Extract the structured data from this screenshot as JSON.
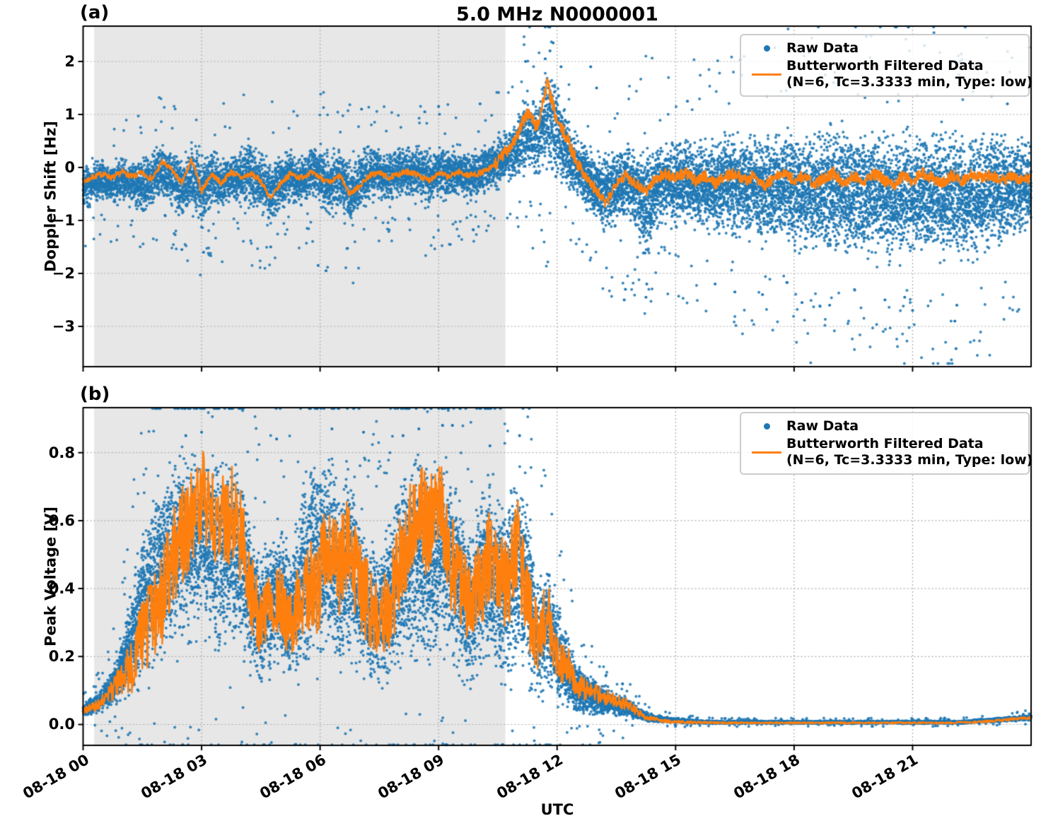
{
  "chart_data": {
    "type": "scatter",
    "title": "5.0 MHz N0000001",
    "xlabel": "UTC",
    "x_tick_labels": [
      "08-18 00",
      "08-18 03",
      "08-18 06",
      "08-18 09",
      "08-18 12",
      "08-18 15",
      "08-18 18",
      "08-18 21"
    ],
    "x_tick_hours": [
      0,
      3,
      6,
      9,
      12,
      15,
      18,
      21
    ],
    "x_range_hours": [
      0,
      24
    ],
    "shaded_region_hours": [
      0.28,
      10.69
    ],
    "shade_color": "#e7e7e7",
    "grid": true,
    "legend_position": "upper right",
    "series_colors": {
      "raw": "#1f77b4",
      "filtered": "#ff7f0e"
    },
    "legend": {
      "raw_label": "Raw Data",
      "filtered_label": "Butterworth Filtered Data",
      "filtered_sublabel": "(N=6, Tc=3.3333 min, Type: low)"
    },
    "t_step_hours": 0.25,
    "panels": [
      {
        "label": "(a)",
        "ylabel": "Doppler Shift [Hz]",
        "y_ticks": [
          2,
          1,
          0,
          -1,
          -2,
          -3
        ],
        "y_tick_labels": [
          "2",
          "1",
          "0",
          "−1",
          "−2",
          "−3"
        ],
        "ylim": [
          -3.7,
          2.65
        ],
        "filtered": [
          -0.28,
          -0.18,
          -0.12,
          -0.2,
          -0.08,
          -0.18,
          -0.1,
          -0.22,
          0.1,
          -0.05,
          -0.3,
          0.15,
          -0.45,
          -0.12,
          -0.3,
          -0.08,
          -0.2,
          -0.12,
          -0.25,
          -0.6,
          -0.3,
          -0.12,
          -0.2,
          -0.1,
          -0.18,
          -0.3,
          -0.15,
          -0.5,
          -0.35,
          -0.15,
          -0.1,
          -0.2,
          -0.12,
          -0.08,
          -0.15,
          -0.25,
          -0.1,
          -0.18,
          -0.08,
          -0.15,
          -0.12,
          -0.05,
          0.1,
          0.35,
          0.6,
          1.05,
          0.75,
          1.6,
          0.85,
          0.55,
          0.1,
          -0.2,
          -0.45,
          -0.7,
          -0.25,
          -0.15,
          -0.3,
          -0.45,
          -0.2,
          -0.12,
          -0.2,
          -0.1,
          -0.25,
          -0.15,
          -0.3,
          -0.18,
          -0.1,
          -0.25,
          -0.15,
          -0.35,
          -0.2,
          -0.1,
          -0.25,
          -0.15,
          -0.35,
          -0.2,
          -0.1,
          -0.3,
          -0.15,
          -0.25,
          -0.12,
          -0.22,
          -0.35,
          -0.15,
          -0.25,
          -0.1,
          -0.2,
          -0.3,
          -0.15,
          -0.25,
          -0.12,
          -0.2,
          -0.15,
          -0.25,
          -0.18,
          -0.22,
          -0.2
        ],
        "band_lo": [
          -0.85,
          -0.8,
          -0.75,
          -0.8,
          -0.7,
          -0.85,
          -1.0,
          -0.9,
          -0.7,
          -0.85,
          -1.1,
          -0.95,
          -1.3,
          -0.9,
          -1.0,
          -0.75,
          -0.85,
          -0.95,
          -1.0,
          -1.25,
          -0.95,
          -0.75,
          -0.85,
          -0.7,
          -0.8,
          -1.15,
          -0.9,
          -1.35,
          -1.0,
          -0.8,
          -0.7,
          -0.8,
          -0.75,
          -0.65,
          -0.75,
          -0.9,
          -0.7,
          -0.8,
          -0.65,
          -0.75,
          -0.7,
          -0.6,
          -0.5,
          -0.4,
          -0.35,
          -0.3,
          -0.35,
          -0.3,
          -0.4,
          -0.55,
          -0.7,
          -0.9,
          -1.1,
          -1.4,
          -1.2,
          -1.1,
          -1.3,
          -2.3,
          -1.3,
          -1.2,
          -1.3,
          -1.25,
          -1.4,
          -1.35,
          -1.5,
          -1.45,
          -1.55,
          -1.6,
          -1.65,
          -1.7,
          -1.75,
          -1.7,
          -1.8,
          -1.85,
          -1.9,
          -1.85,
          -1.95,
          -2.0,
          -1.95,
          -2.0,
          -1.95,
          -2.0,
          -2.05,
          -1.95,
          -2.0,
          -1.95,
          -2.0,
          -2.05,
          -2.1,
          -2.0,
          -1.95,
          -1.9,
          -1.8,
          -1.7,
          -1.6,
          -1.55,
          -1.5
        ],
        "band_hi": [
          0.15,
          0.2,
          0.25,
          0.2,
          0.3,
          0.25,
          0.3,
          0.45,
          0.55,
          0.4,
          0.35,
          0.6,
          0.45,
          0.5,
          0.35,
          0.4,
          0.45,
          0.7,
          0.4,
          0.3,
          0.35,
          0.4,
          0.3,
          0.45,
          0.55,
          0.4,
          0.5,
          0.35,
          0.45,
          0.6,
          0.5,
          0.4,
          0.55,
          0.45,
          0.6,
          0.4,
          0.55,
          0.45,
          0.5,
          0.4,
          0.45,
          0.55,
          0.7,
          0.9,
          1.2,
          1.7,
          1.4,
          2.3,
          1.8,
          1.0,
          0.7,
          0.5,
          0.4,
          0.45,
          0.5,
          0.6,
          0.55,
          0.8,
          0.6,
          0.7,
          0.65,
          0.75,
          0.7,
          0.8,
          0.75,
          0.85,
          0.8,
          0.9,
          0.85,
          0.9,
          0.85,
          0.95,
          0.9,
          0.95,
          0.9,
          1.0,
          0.95,
          1.1,
          0.95,
          0.9,
          1.0,
          0.95,
          0.9,
          0.95,
          1.0,
          0.9,
          0.95,
          1.0,
          1.05,
          0.95,
          0.9,
          0.85,
          0.9,
          0.85,
          0.8,
          0.85,
          0.8
        ],
        "outliers": [
          [
            11.9,
            2.35
          ],
          [
            11.82,
            2.2
          ],
          [
            11.7,
            2.05
          ],
          [
            13.7,
            -2.5
          ],
          [
            13.73,
            -2.3
          ],
          [
            14.25,
            -2.45
          ],
          [
            14.27,
            -2.2
          ],
          [
            22.1,
            -3.42
          ],
          [
            22.07,
            -2.9
          ],
          [
            22.12,
            -2.6
          ],
          [
            19.3,
            2.3
          ],
          [
            19.28,
            1.9
          ],
          [
            22.2,
            2.0
          ],
          [
            21.0,
            -2.7
          ],
          [
            18.2,
            -2.55
          ],
          [
            16.5,
            -2.35
          ],
          [
            20.3,
            -2.5
          ],
          [
            17.2,
            -2.4
          ],
          [
            9.0,
            1.15
          ],
          [
            7.05,
            1.1
          ],
          [
            8.65,
            1.05
          ],
          [
            10.05,
            1.2
          ],
          [
            5.95,
            -1.85
          ],
          [
            6.15,
            -1.95
          ],
          [
            3.05,
            -1.6
          ],
          [
            2.5,
            -1.55
          ],
          [
            4.75,
            -1.5
          ],
          [
            12.1,
            1.9
          ],
          [
            11.2,
            2.0
          ],
          [
            19.0,
            1.6
          ],
          [
            21.5,
            1.55
          ],
          [
            23.0,
            1.35
          ],
          [
            15.3,
            1.25
          ],
          [
            17.8,
            1.45
          ],
          [
            18.9,
            -2.6
          ],
          [
            20.8,
            -2.45
          ],
          [
            16.0,
            -2.2
          ],
          [
            21.3,
            2.3
          ],
          [
            23.4,
            1.2
          ],
          [
            12.85,
            1.9
          ],
          [
            13.0,
            1.5
          ]
        ]
      },
      {
        "label": "(b)",
        "ylabel": "Peak Voltage [V]",
        "y_ticks": [
          0.8,
          0.6,
          0.4,
          0.2,
          0.0
        ],
        "y_tick_labels": [
          "0.8",
          "0.6",
          "0.4",
          "0.2",
          "0.0"
        ],
        "ylim": [
          -0.06,
          0.93
        ],
        "filtered": [
          0.04,
          0.05,
          0.07,
          0.1,
          0.14,
          0.18,
          0.26,
          0.32,
          0.38,
          0.48,
          0.55,
          0.6,
          0.68,
          0.62,
          0.58,
          0.62,
          0.55,
          0.38,
          0.3,
          0.33,
          0.36,
          0.3,
          0.34,
          0.4,
          0.42,
          0.55,
          0.45,
          0.55,
          0.4,
          0.35,
          0.3,
          0.35,
          0.45,
          0.55,
          0.68,
          0.55,
          0.7,
          0.5,
          0.45,
          0.35,
          0.4,
          0.5,
          0.45,
          0.4,
          0.55,
          0.35,
          0.25,
          0.32,
          0.2,
          0.18,
          0.12,
          0.1,
          0.09,
          0.08,
          0.07,
          0.06,
          0.04,
          0.02,
          0.015,
          0.01,
          0.008,
          0.007,
          0.006,
          0.006,
          0.005,
          0.005,
          0.005,
          0.005,
          0.005,
          0.005,
          0.005,
          0.005,
          0.005,
          0.005,
          0.005,
          0.005,
          0.005,
          0.005,
          0.005,
          0.005,
          0.005,
          0.005,
          0.005,
          0.005,
          0.005,
          0.005,
          0.005,
          0.005,
          0.005,
          0.006,
          0.007,
          0.008,
          0.01,
          0.012,
          0.015,
          0.018,
          0.02
        ],
        "band_lo": [
          0.02,
          0.02,
          0.03,
          0.04,
          0.05,
          0.06,
          0.08,
          0.1,
          0.12,
          0.15,
          0.18,
          0.2,
          0.25,
          0.2,
          0.15,
          0.2,
          0.15,
          0.1,
          0.08,
          0.1,
          0.12,
          0.08,
          0.1,
          0.12,
          0.1,
          0.15,
          0.1,
          0.12,
          0.08,
          0.06,
          0.05,
          0.08,
          0.1,
          0.12,
          0.15,
          0.12,
          0.15,
          0.12,
          0.1,
          0.06,
          0.08,
          0.1,
          0.08,
          0.06,
          0.1,
          0.05,
          0.04,
          0.06,
          0.03,
          0.03,
          0.02,
          0.02,
          0.02,
          0.015,
          0.015,
          0.01,
          0.008,
          0.005,
          0.004,
          0.003,
          0.002,
          0.002,
          0.001,
          0.001,
          0.001,
          0.001,
          0.001,
          0.001,
          0.001,
          0.001,
          0.001,
          0.001,
          0.001,
          0.001,
          0.001,
          0.001,
          0.001,
          0.001,
          0.001,
          0.001,
          0.001,
          0.001,
          0.001,
          0.001,
          0.001,
          0.001,
          0.001,
          0.001,
          0.001,
          0.002,
          0.003,
          0.004,
          0.005,
          0.006,
          0.008,
          0.009,
          0.01
        ],
        "band_hi": [
          0.07,
          0.09,
          0.12,
          0.18,
          0.3,
          0.45,
          0.6,
          0.72,
          0.8,
          0.85,
          0.86,
          0.85,
          0.86,
          0.83,
          0.85,
          0.86,
          0.8,
          0.65,
          0.55,
          0.6,
          0.65,
          0.55,
          0.72,
          0.85,
          0.86,
          0.87,
          0.75,
          0.85,
          0.7,
          0.6,
          0.55,
          0.65,
          0.78,
          0.85,
          0.87,
          0.8,
          0.88,
          0.82,
          0.75,
          0.6,
          0.7,
          0.8,
          0.75,
          0.7,
          0.83,
          0.75,
          0.45,
          0.55,
          0.38,
          0.3,
          0.2,
          0.16,
          0.14,
          0.12,
          0.1,
          0.09,
          0.06,
          0.04,
          0.03,
          0.025,
          0.02,
          0.018,
          0.015,
          0.013,
          0.012,
          0.012,
          0.012,
          0.012,
          0.012,
          0.012,
          0.012,
          0.012,
          0.012,
          0.012,
          0.012,
          0.012,
          0.012,
          0.012,
          0.012,
          0.012,
          0.012,
          0.012,
          0.012,
          0.012,
          0.012,
          0.012,
          0.012,
          0.012,
          0.012,
          0.013,
          0.015,
          0.018,
          0.02,
          0.022,
          0.025,
          0.028,
          0.03
        ],
        "outliers": [
          [
            9.1,
            0.88
          ],
          [
            8.5,
            0.87
          ],
          [
            6.3,
            0.87
          ],
          [
            3.0,
            0.86
          ],
          [
            11.05,
            0.85
          ],
          [
            2.6,
            0.85
          ],
          [
            7.1,
            0.86
          ],
          [
            4.9,
            0.84
          ],
          [
            10.3,
            0.82
          ],
          [
            9.35,
            0.88
          ],
          [
            8.1,
            0.85
          ],
          [
            23.8,
            0.03
          ]
        ]
      }
    ]
  }
}
